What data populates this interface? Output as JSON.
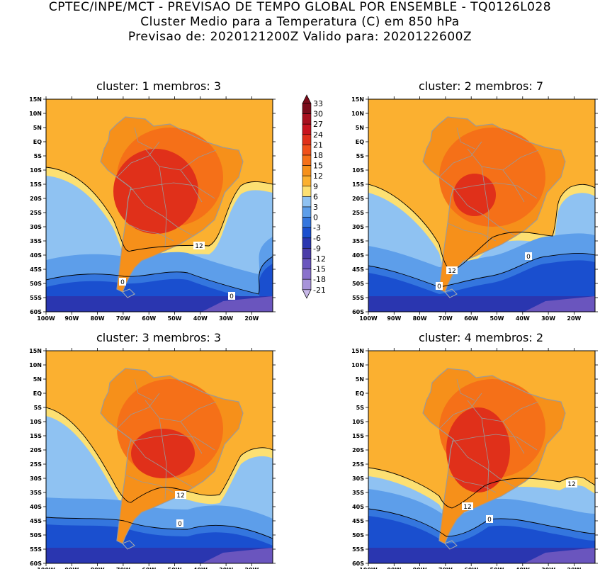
{
  "header": {
    "line1": "CPTEC/INPE/MCT - PREVISAO DE TEMPO GLOBAL POR ENSEMBLE - TQ0126L028",
    "line2": "Cluster Medio para a Temperatura (C) em 850 hPa",
    "line3": "Previsao de: 2020121200Z   Valido para: 2020122600Z"
  },
  "axes": {
    "lat_labels": [
      "15N",
      "10N",
      "5N",
      "EQ",
      "5S",
      "10S",
      "15S",
      "20S",
      "25S",
      "30S",
      "35S",
      "40S",
      "45S",
      "50S",
      "55S",
      "60S"
    ],
    "lon_labels": [
      "100W",
      "90W",
      "80W",
      "70W",
      "60W",
      "50W",
      "40W",
      "30W",
      "20W"
    ]
  },
  "colorbar": {
    "levels": [
      "33",
      "30",
      "27",
      "24",
      "21",
      "18",
      "15",
      "12",
      "9",
      "6",
      "3",
      "0",
      "-3",
      "-6",
      "-9",
      "-12",
      "-15",
      "-18",
      "-21"
    ],
    "colors": [
      "#7a0c1a",
      "#a8101e",
      "#c8141e",
      "#e0301a",
      "#f0501a",
      "#f57018",
      "#f6901a",
      "#fbb030",
      "#fde072",
      "#8fc2f2",
      "#5d9eea",
      "#3476de",
      "#1a4fcf",
      "#2a36b0",
      "#4a3ca8",
      "#6a55be",
      "#8a72cc",
      "#a894da",
      "#c8b8e8"
    ]
  },
  "contour_labels": {
    "twelve": "12",
    "zero": "0"
  },
  "panels": [
    {
      "title": "cluster: 1   membros: 3"
    },
    {
      "title": "cluster: 2   membros: 7"
    },
    {
      "title": "cluster: 3   membros: 3"
    },
    {
      "title": "cluster: 4   membros: 2"
    }
  ]
}
